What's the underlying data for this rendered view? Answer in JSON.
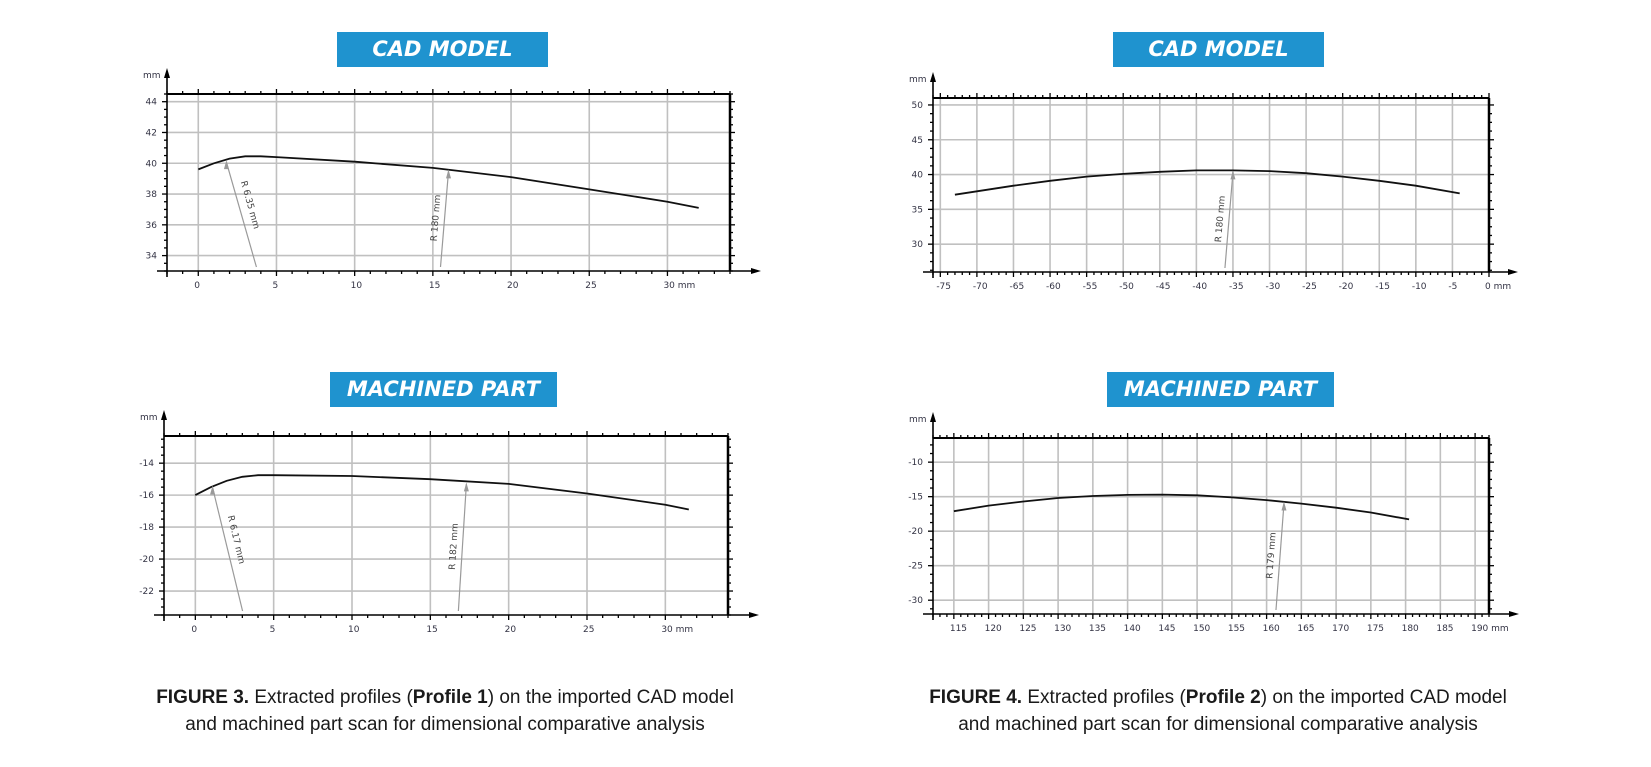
{
  "figures": [
    {
      "id": "fig3",
      "caption": {
        "label": "FIGURE 3.",
        "text_before": " Extracted profiles (",
        "bold": "Profile 1",
        "text_after": ") on the imported CAD model",
        "line2": "and machined part scan for dimensional comparative analysis"
      }
    },
    {
      "id": "fig4",
      "caption": {
        "label": "FIGURE 4.",
        "text_before": " Extracted profiles (",
        "bold": "Profile 2",
        "text_after": ") on the imported CAD model",
        "line2": "and machined part scan for dimensional comparative analysis"
      }
    }
  ],
  "banners": {
    "cad_model": "CAD MODEL",
    "machined_part": "MACHINED PART"
  },
  "colors": {
    "banner": "#1f93cf",
    "grid": "#c0c0c0",
    "axis": "#000000",
    "profile": "#111111",
    "annotation": "#9a9a9a"
  },
  "chart_data": [
    {
      "type": "line",
      "title": "CAD MODEL",
      "figure": "FIGURE 3 (Profile 1)",
      "xlabel": "mm",
      "ylabel": "mm",
      "xlim": [
        -2,
        34
      ],
      "ylim": [
        33,
        44.5
      ],
      "xticks": [
        0,
        5,
        10,
        15,
        20,
        25,
        30
      ],
      "yticks": [
        34,
        36,
        38,
        40,
        42,
        44
      ],
      "x_tick_labels": [
        "0",
        "5",
        "10",
        "15",
        "20",
        "25",
        "30 mm"
      ],
      "y_tick_labels": [
        "34",
        "36",
        "38",
        "40",
        "42",
        "44"
      ],
      "grid": true,
      "series": [
        {
          "name": "Profile 1",
          "x": [
            0,
            1,
            2,
            3,
            4,
            5,
            10,
            15,
            20,
            25,
            30,
            32
          ],
          "y": [
            39.6,
            40.0,
            40.3,
            40.45,
            40.45,
            40.4,
            40.1,
            39.7,
            39.1,
            38.3,
            37.5,
            37.1
          ]
        }
      ],
      "annotations": [
        {
          "text": "R 6.35 mm",
          "x": 1.8,
          "y": 40.2
        },
        {
          "text": "R 180 mm",
          "x": 16.0,
          "y": 39.6
        }
      ]
    },
    {
      "type": "line",
      "title": "CAD MODEL",
      "figure": "FIGURE 4 (Profile 2)",
      "xlabel": "mm",
      "ylabel": "mm",
      "xlim": [
        -76,
        0
      ],
      "ylim": [
        26,
        51
      ],
      "xticks": [
        -75,
        -70,
        -65,
        -60,
        -55,
        -50,
        -45,
        -40,
        -35,
        -30,
        -25,
        -20,
        -15,
        -10,
        -5,
        0
      ],
      "yticks": [
        30,
        35,
        40,
        45,
        50
      ],
      "x_tick_labels": [
        "-75",
        "-70",
        "-65",
        "-60",
        "-55",
        "-50",
        "-45",
        "-40",
        "-35",
        "-30",
        "-25",
        "-20",
        "-15",
        "-10",
        "-5",
        "0 mm"
      ],
      "y_tick_labels": [
        "30",
        "35",
        "40",
        "45",
        "50"
      ],
      "grid": true,
      "series": [
        {
          "name": "Profile 2",
          "x": [
            -73,
            -70,
            -65,
            -60,
            -55,
            -50,
            -45,
            -40,
            -35,
            -30,
            -25,
            -20,
            -15,
            -10,
            -4
          ],
          "y": [
            37.1,
            37.6,
            38.4,
            39.1,
            39.7,
            40.1,
            40.4,
            40.6,
            40.6,
            40.5,
            40.2,
            39.7,
            39.1,
            38.4,
            37.3
          ]
        }
      ],
      "annotations": [
        {
          "text": "R 180 mm",
          "x": -35.0,
          "y": 40.6
        }
      ]
    },
    {
      "type": "line",
      "title": "MACHINED PART",
      "figure": "FIGURE 3 (Profile 1)",
      "xlabel": "mm",
      "ylabel": "mm",
      "xlim": [
        -2,
        34
      ],
      "ylim": [
        -23.5,
        -12.3
      ],
      "xticks": [
        0,
        5,
        10,
        15,
        20,
        25,
        30
      ],
      "yticks": [
        -22,
        -20,
        -18,
        -16,
        -14
      ],
      "x_tick_labels": [
        "0",
        "5",
        "10",
        "15",
        "20",
        "25",
        "30 mm"
      ],
      "y_tick_labels": [
        "-22",
        "-20",
        "-18",
        "-16",
        "-14"
      ],
      "grid": true,
      "series": [
        {
          "name": "Profile 1",
          "x": [
            0,
            1,
            2,
            3,
            4,
            5,
            10,
            15,
            20,
            25,
            30,
            31.5
          ],
          "y": [
            -16.0,
            -15.5,
            -15.1,
            -14.85,
            -14.75,
            -14.75,
            -14.8,
            -15.0,
            -15.3,
            -15.9,
            -16.6,
            -16.9
          ]
        }
      ],
      "annotations": [
        {
          "text": "R 6.17 mm",
          "x": 1.1,
          "y": -15.4
        },
        {
          "text": "R 182 mm",
          "x": 17.3,
          "y": -15.2
        }
      ]
    },
    {
      "type": "line",
      "title": "MACHINED PART",
      "figure": "FIGURE 4 (Profile 2)",
      "xlabel": "mm",
      "ylabel": "mm",
      "xlim": [
        112,
        192
      ],
      "ylim": [
        -32,
        -6.5
      ],
      "xticks": [
        115,
        120,
        125,
        130,
        135,
        140,
        145,
        150,
        155,
        160,
        165,
        170,
        175,
        180,
        185,
        190
      ],
      "yticks": [
        -30,
        -25,
        -20,
        -15,
        -10
      ],
      "x_tick_labels": [
        "115",
        "120",
        "125",
        "130",
        "135",
        "140",
        "145",
        "150",
        "155",
        "160",
        "165",
        "170",
        "175",
        "180",
        "185",
        "190 mm"
      ],
      "y_tick_labels": [
        "-30",
        "-25",
        "-20",
        "-15",
        "-10"
      ],
      "grid": true,
      "series": [
        {
          "name": "Profile 2",
          "x": [
            115,
            120,
            125,
            130,
            135,
            140,
            145,
            150,
            155,
            160,
            165,
            170,
            175,
            180.5
          ],
          "y": [
            -17.1,
            -16.3,
            -15.7,
            -15.2,
            -14.9,
            -14.75,
            -14.7,
            -14.8,
            -15.1,
            -15.5,
            -16.0,
            -16.6,
            -17.3,
            -18.3
          ]
        }
      ],
      "annotations": [
        {
          "text": "R 179 mm",
          "x": 162.5,
          "y": -15.7
        }
      ]
    }
  ]
}
